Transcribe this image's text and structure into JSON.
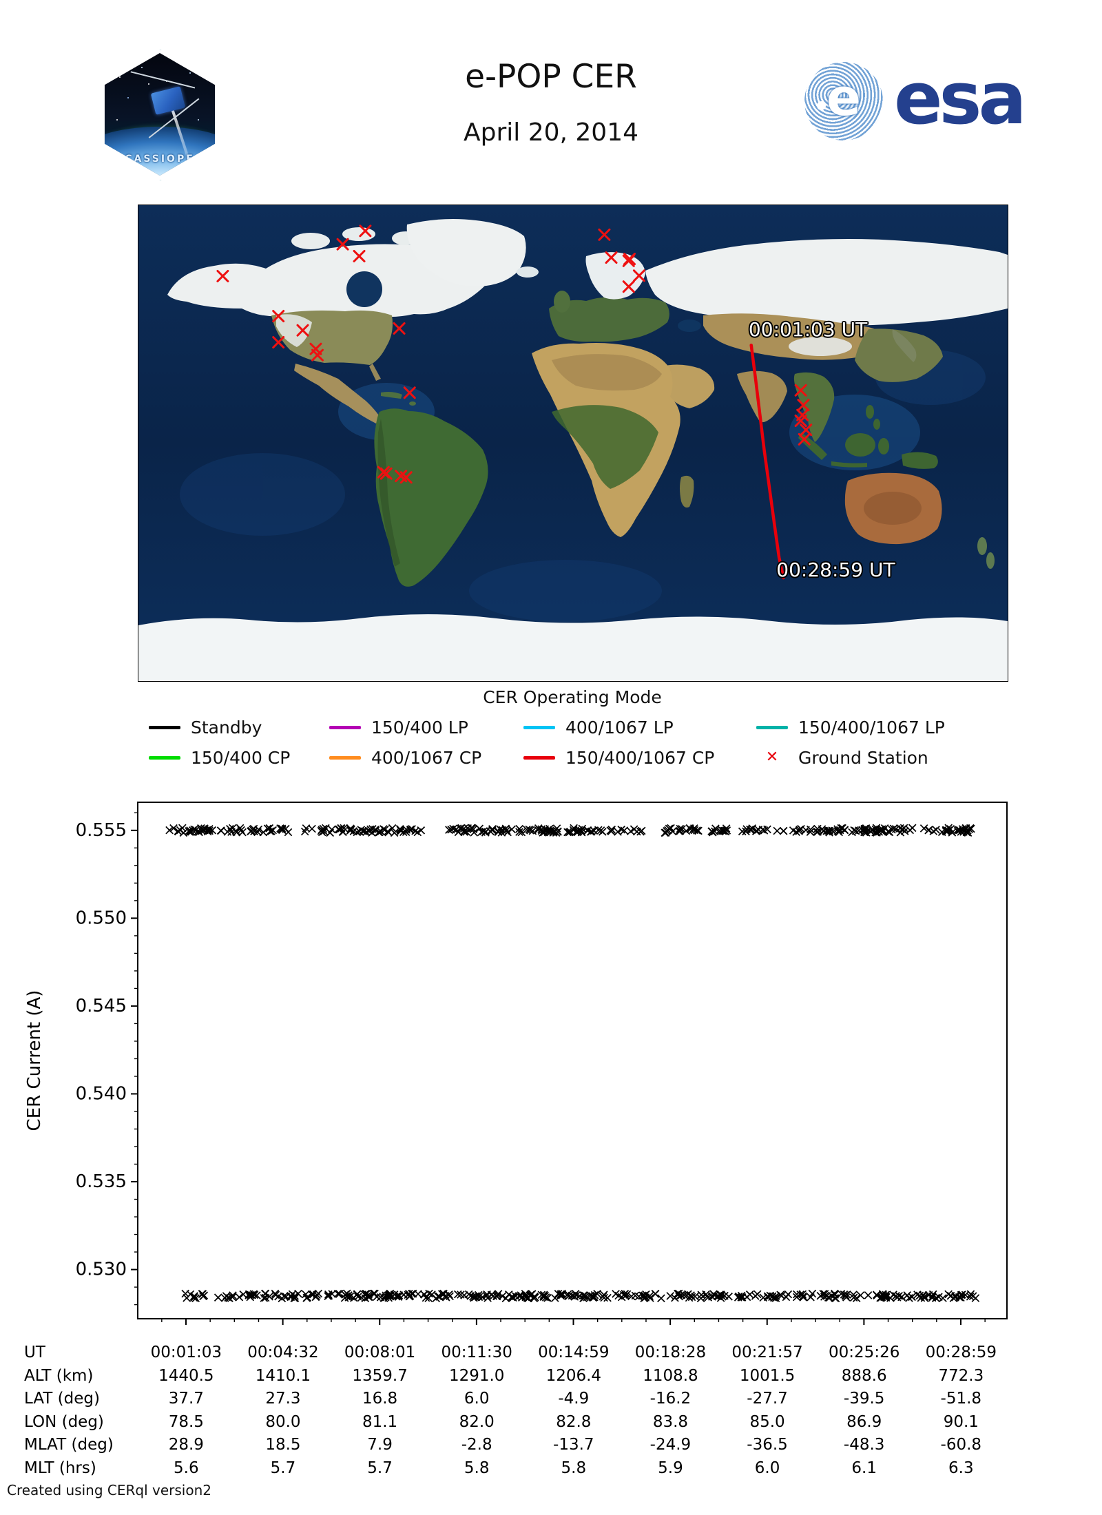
{
  "header": {
    "title": "e-POP CER",
    "date": "April 20, 2014",
    "patch": {
      "label": "CASSIOPE"
    },
    "esa_logo_text": "esa",
    "esa_e": "e"
  },
  "map": {
    "start_label": "00:01:03 UT",
    "end_label": "00:28:59 UT",
    "track_color": "#e8000b",
    "ground_station_color": "#ee1111",
    "ground_stations_pct": [
      [
        26.1,
        5.4
      ],
      [
        23.5,
        8.2
      ],
      [
        25.4,
        10.7
      ],
      [
        9.7,
        14.9
      ],
      [
        16.1,
        23.3
      ],
      [
        18.9,
        26.3
      ],
      [
        16.1,
        28.8
      ],
      [
        20.4,
        30.2
      ],
      [
        20.6,
        31.5
      ],
      [
        30.0,
        25.9
      ],
      [
        31.2,
        39.4
      ],
      [
        28.2,
        56.1
      ],
      [
        28.5,
        56.4
      ],
      [
        30.2,
        56.9
      ],
      [
        30.8,
        57.2
      ],
      [
        53.6,
        6.2
      ],
      [
        54.4,
        11.0
      ],
      [
        56.5,
        11.3
      ],
      [
        56.4,
        11.7
      ],
      [
        57.6,
        14.8
      ],
      [
        56.4,
        17.1
      ],
      [
        76.2,
        38.9
      ],
      [
        76.5,
        42.0
      ],
      [
        76.4,
        44.1
      ],
      [
        76.2,
        45.3
      ],
      [
        76.8,
        47.2
      ],
      [
        76.6,
        49.2
      ]
    ],
    "track_pct": [
      [
        70.5,
        29.4
      ],
      [
        71.0,
        36.5
      ],
      [
        71.5,
        44.0
      ],
      [
        72.0,
        51.5
      ],
      [
        72.6,
        59.5
      ],
      [
        73.2,
        67.5
      ],
      [
        73.7,
        74.0
      ],
      [
        74.2,
        78.3
      ]
    ],
    "start_label_pos_pct": [
      70.2,
      23.8
    ],
    "end_label_pos_pct": [
      73.4,
      74.2
    ]
  },
  "legend": {
    "title": "CER Operating Mode",
    "rows": [
      [
        {
          "label": "Standby",
          "color": "#000000",
          "swatch": "line"
        },
        {
          "label": "150/400 LP",
          "color": "#b400b4",
          "swatch": "line"
        },
        {
          "label": "400/1067 LP",
          "color": "#00c4f5",
          "swatch": "line"
        },
        {
          "label": "150/400/1067 LP",
          "color": "#00b2a8",
          "swatch": "line"
        }
      ],
      [
        {
          "label": "150/400 CP",
          "color": "#00dc00",
          "swatch": "line"
        },
        {
          "label": "400/1067 CP",
          "color": "#ff8c1e",
          "swatch": "line"
        },
        {
          "label": "150/400/1067 CP",
          "color": "#e8000b",
          "swatch": "line"
        },
        {
          "label": "Ground Station",
          "color": "#e8000b",
          "swatch": "marker-x"
        }
      ]
    ]
  },
  "chart_data": {
    "type": "scatter",
    "title": "",
    "ylabel": "CER Current (A)",
    "yticks": [
      0.53,
      0.535,
      0.54,
      0.545,
      0.55,
      0.555
    ],
    "ylim": [
      0.5272,
      0.5566
    ],
    "grid": false,
    "marker": "x",
    "marker_color": "#000000",
    "series": [
      {
        "name": "Standby",
        "value_A": 0.555,
        "segments_frac": [
          [
            0.036,
            0.174
          ],
          [
            0.191,
            0.328
          ],
          [
            0.353,
            0.582
          ],
          [
            0.6,
            0.647
          ],
          [
            0.659,
            0.96
          ]
        ]
      },
      {
        "name": "Standby",
        "value_A": 0.5285,
        "segments_frac": [
          [
            0.05,
            0.078
          ],
          [
            0.091,
            0.968
          ]
        ]
      }
    ],
    "table": {
      "rows": [
        {
          "label": "UT",
          "values": [
            "00:01:03",
            "00:04:32",
            "00:08:01",
            "00:11:30",
            "00:14:59",
            "00:18:28",
            "00:21:57",
            "00:25:26",
            "00:28:59"
          ]
        },
        {
          "label": "ALT (km)",
          "values": [
            "1440.5",
            "1410.1",
            "1359.7",
            "1291.0",
            "1206.4",
            "1108.8",
            "1001.5",
            "888.6",
            "772.3"
          ]
        },
        {
          "label": "LAT (deg)",
          "values": [
            "37.7",
            "27.3",
            "16.8",
            "6.0",
            "-4.9",
            "-16.2",
            "-27.7",
            "-39.5",
            "-51.8"
          ]
        },
        {
          "label": "LON (deg)",
          "values": [
            "78.5",
            "80.0",
            "81.1",
            "82.0",
            "82.8",
            "83.8",
            "85.0",
            "86.9",
            "90.1"
          ]
        },
        {
          "label": "MLAT (deg)",
          "values": [
            "28.9",
            "18.5",
            "7.9",
            "-2.8",
            "-13.7",
            "-24.9",
            "-36.5",
            "-48.3",
            "-60.8"
          ]
        },
        {
          "label": "MLT (hrs)",
          "values": [
            "5.6",
            "5.7",
            "5.7",
            "5.8",
            "5.8",
            "5.9",
            "6.0",
            "6.1",
            "6.3"
          ]
        }
      ]
    }
  },
  "footer": {
    "credit": "Created using CERql version2"
  }
}
